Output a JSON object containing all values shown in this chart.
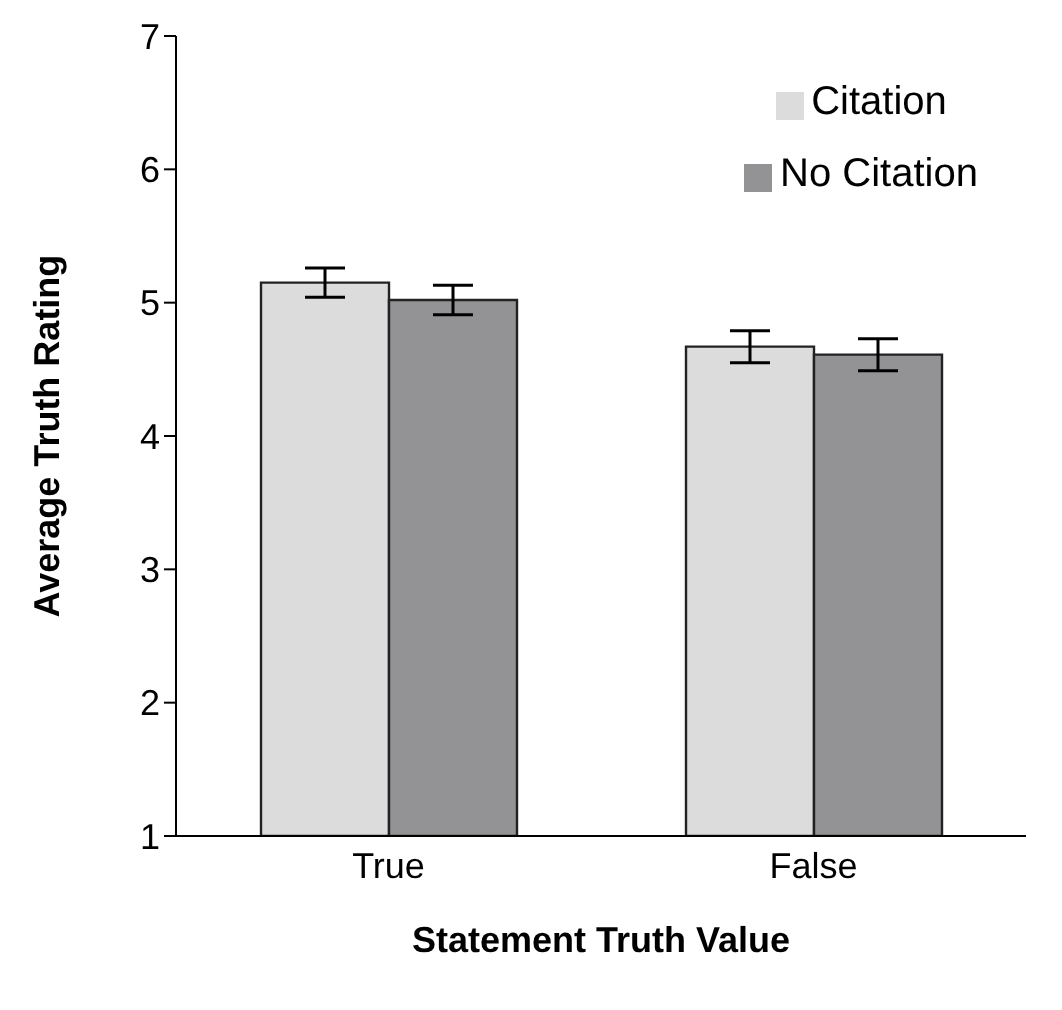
{
  "chart_data": {
    "type": "bar",
    "xlabel": "Statement Truth Value",
    "ylabel": "Average Truth Rating",
    "categories": [
      "True",
      "False"
    ],
    "series": [
      {
        "name": "Citation",
        "color": "#dcdcdd",
        "values": [
          5.15,
          4.67
        ],
        "errors": [
          0.11,
          0.12
        ]
      },
      {
        "name": "No Citation",
        "color": "#939396",
        "values": [
          5.02,
          4.61
        ],
        "errors": [
          0.11,
          0.12
        ]
      }
    ],
    "ylim": [
      1,
      7
    ],
    "yticks": [
      1,
      2,
      3,
      4,
      5,
      6,
      7
    ],
    "grid": false,
    "legend": "top right"
  }
}
